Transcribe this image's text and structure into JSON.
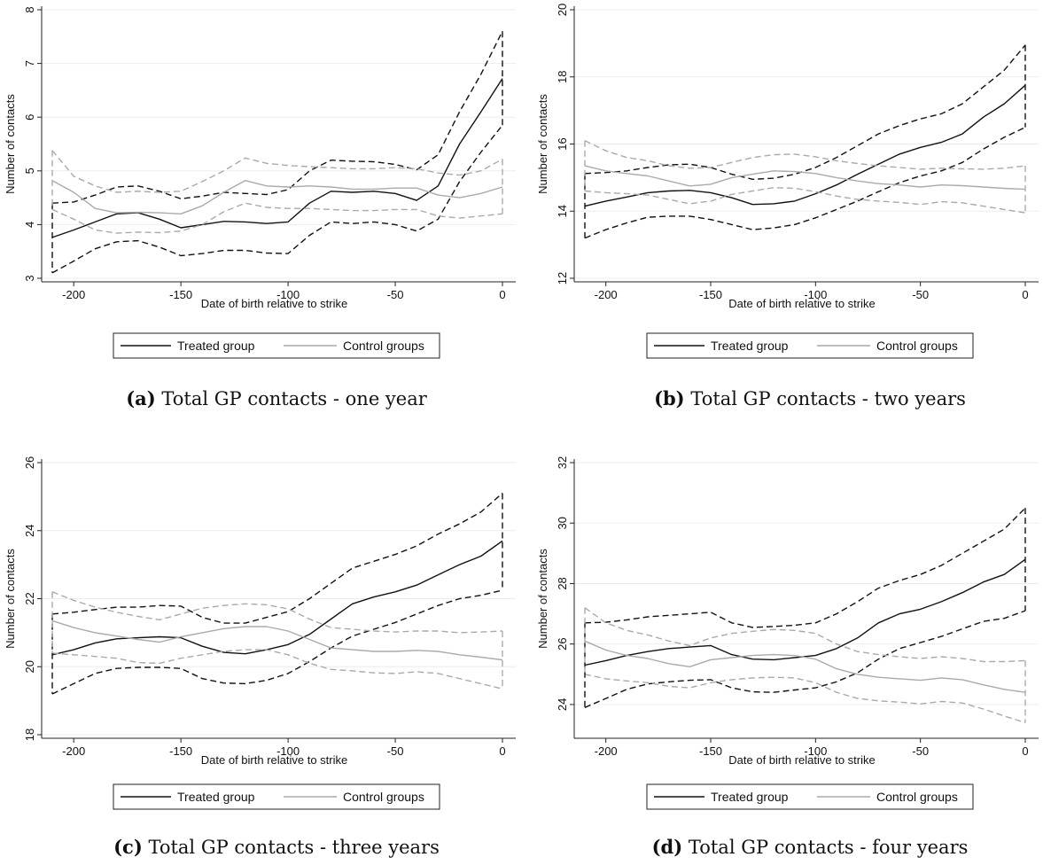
{
  "chart_data": [
    {
      "type": "line",
      "caption_letter": "(a)",
      "caption_text": "Total GP contacts - one year",
      "xlabel": "Date of birth relative to strike",
      "ylabel": "Number of contacts",
      "xlim": [
        -210,
        0
      ],
      "ylim": [
        3,
        8
      ],
      "xticks": [
        -200,
        -150,
        -100,
        -50,
        0
      ],
      "yticks": [
        3,
        4,
        5,
        6,
        7,
        8
      ],
      "grid": true,
      "legend_position": "bottom",
      "x": [
        -210,
        -200,
        -190,
        -180,
        -170,
        -160,
        -150,
        -140,
        -130,
        -120,
        -110,
        -100,
        -90,
        -80,
        -70,
        -60,
        -50,
        -40,
        -30,
        -20,
        -10,
        0
      ],
      "series": [
        {
          "name": "Treated group",
          "color": "#111111",
          "dash": "solid",
          "values": [
            3.76,
            3.9,
            4.05,
            4.2,
            4.22,
            4.1,
            3.94,
            4.0,
            4.06,
            4.05,
            4.02,
            4.05,
            4.4,
            4.62,
            4.6,
            4.62,
            4.58,
            4.45,
            4.72,
            5.5,
            6.1,
            6.72
          ]
        },
        {
          "name": "",
          "color": "#111111",
          "dash": "dashed",
          "values": [
            4.4,
            4.42,
            4.55,
            4.7,
            4.72,
            4.62,
            4.48,
            4.53,
            4.6,
            4.58,
            4.56,
            4.65,
            5.0,
            5.2,
            5.18,
            5.17,
            5.12,
            5.02,
            5.3,
            6.1,
            6.8,
            7.6
          ]
        },
        {
          "name": "",
          "color": "#111111",
          "dash": "dashed",
          "values": [
            3.1,
            3.32,
            3.55,
            3.68,
            3.7,
            3.58,
            3.42,
            3.46,
            3.52,
            3.52,
            3.47,
            3.46,
            3.8,
            4.05,
            4.02,
            4.05,
            4.0,
            3.88,
            4.1,
            4.8,
            5.35,
            5.85
          ]
        },
        {
          "name": "Control groups",
          "color": "#aaaaaa",
          "dash": "solid",
          "values": [
            4.82,
            4.6,
            4.3,
            4.22,
            4.23,
            4.22,
            4.2,
            4.35,
            4.6,
            4.82,
            4.72,
            4.7,
            4.72,
            4.7,
            4.66,
            4.66,
            4.68,
            4.68,
            4.55,
            4.5,
            4.58,
            4.7
          ]
        },
        {
          "name": "",
          "color": "#aaaaaa",
          "dash": "dashed",
          "values": [
            5.38,
            4.9,
            4.72,
            4.6,
            4.62,
            4.6,
            4.62,
            4.8,
            5.0,
            5.24,
            5.14,
            5.1,
            5.08,
            5.06,
            5.04,
            5.04,
            5.06,
            5.04,
            4.96,
            4.92,
            5.0,
            5.22
          ]
        },
        {
          "name": "",
          "color": "#aaaaaa",
          "dash": "dashed",
          "values": [
            4.28,
            4.1,
            3.9,
            3.84,
            3.86,
            3.85,
            3.88,
            4.0,
            4.24,
            4.4,
            4.32,
            4.3,
            4.3,
            4.28,
            4.26,
            4.26,
            4.28,
            4.28,
            4.16,
            4.12,
            4.16,
            4.2
          ]
        }
      ],
      "legend": [
        "Treated group",
        "Control groups"
      ]
    },
    {
      "type": "line",
      "caption_letter": "(b)",
      "caption_text": "Total GP contacts - two years",
      "xlabel": "Date of birth relative to strike",
      "ylabel": "Number of contacts",
      "xlim": [
        -210,
        0
      ],
      "ylim": [
        12,
        20
      ],
      "xticks": [
        -200,
        -150,
        -100,
        -50,
        0
      ],
      "yticks": [
        12,
        14,
        16,
        18,
        20
      ],
      "grid": true,
      "legend_position": "bottom",
      "x": [
        -210,
        -200,
        -190,
        -180,
        -170,
        -160,
        -150,
        -140,
        -130,
        -120,
        -110,
        -100,
        -90,
        -80,
        -70,
        -60,
        -50,
        -40,
        -30,
        -20,
        -10,
        0
      ],
      "series": [
        {
          "name": "Treated group",
          "color": "#111111",
          "dash": "solid",
          "values": [
            14.15,
            14.3,
            14.42,
            14.55,
            14.6,
            14.62,
            14.55,
            14.4,
            14.2,
            14.22,
            14.3,
            14.52,
            14.78,
            15.1,
            15.4,
            15.7,
            15.9,
            16.05,
            16.3,
            16.8,
            17.2,
            17.75
          ]
        },
        {
          "name": "",
          "color": "#111111",
          "dash": "dashed",
          "values": [
            15.12,
            15.15,
            15.2,
            15.3,
            15.38,
            15.4,
            15.3,
            15.1,
            14.95,
            14.98,
            15.1,
            15.3,
            15.6,
            15.95,
            16.3,
            16.55,
            16.75,
            16.9,
            17.2,
            17.7,
            18.2,
            18.95
          ]
        },
        {
          "name": "",
          "color": "#111111",
          "dash": "dashed",
          "values": [
            13.2,
            13.45,
            13.65,
            13.82,
            13.85,
            13.85,
            13.75,
            13.6,
            13.45,
            13.5,
            13.6,
            13.8,
            14.05,
            14.3,
            14.58,
            14.85,
            15.05,
            15.2,
            15.45,
            15.85,
            16.2,
            16.5
          ]
        },
        {
          "name": "Control groups",
          "color": "#aaaaaa",
          "dash": "solid",
          "values": [
            15.35,
            15.2,
            15.12,
            15.05,
            14.9,
            14.75,
            14.8,
            15.0,
            15.1,
            15.2,
            15.18,
            15.12,
            15.0,
            14.9,
            14.82,
            14.78,
            14.72,
            14.78,
            14.76,
            14.72,
            14.68,
            14.65
          ]
        },
        {
          "name": "",
          "color": "#aaaaaa",
          "dash": "dashed",
          "values": [
            16.1,
            15.8,
            15.6,
            15.5,
            15.35,
            15.28,
            15.3,
            15.45,
            15.6,
            15.68,
            15.7,
            15.62,
            15.5,
            15.42,
            15.35,
            15.3,
            15.25,
            15.28,
            15.26,
            15.25,
            15.28,
            15.35
          ]
        },
        {
          "name": "",
          "color": "#aaaaaa",
          "dash": "dashed",
          "values": [
            14.6,
            14.55,
            14.52,
            14.48,
            14.35,
            14.22,
            14.3,
            14.5,
            14.6,
            14.7,
            14.68,
            14.58,
            14.45,
            14.35,
            14.3,
            14.26,
            14.2,
            14.28,
            14.25,
            14.15,
            14.05,
            13.95
          ]
        }
      ],
      "legend": [
        "Treated group",
        "Control groups"
      ]
    },
    {
      "type": "line",
      "caption_letter": "(c)",
      "caption_text": "Total GP contacts - three years",
      "xlabel": "Date of birth relative to strike",
      "ylabel": "Number of contacts",
      "xlim": [
        -210,
        0
      ],
      "ylim": [
        18,
        26
      ],
      "xticks": [
        -200,
        -150,
        -100,
        -50,
        0
      ],
      "yticks": [
        18,
        20,
        22,
        24,
        26
      ],
      "grid": true,
      "legend_position": "bottom",
      "x": [
        -210,
        -200,
        -190,
        -180,
        -170,
        -160,
        -150,
        -140,
        -130,
        -120,
        -110,
        -100,
        -90,
        -80,
        -70,
        -60,
        -50,
        -40,
        -30,
        -20,
        -10,
        0
      ],
      "series": [
        {
          "name": "Treated group",
          "color": "#111111",
          "dash": "solid",
          "values": [
            20.35,
            20.5,
            20.7,
            20.82,
            20.85,
            20.88,
            20.85,
            20.6,
            20.42,
            20.38,
            20.5,
            20.65,
            20.95,
            21.4,
            21.85,
            22.05,
            22.2,
            22.4,
            22.7,
            23.0,
            23.25,
            23.7
          ]
        },
        {
          "name": "",
          "color": "#111111",
          "dash": "dashed",
          "values": [
            21.55,
            21.6,
            21.68,
            21.75,
            21.75,
            21.8,
            21.78,
            21.45,
            21.28,
            21.28,
            21.45,
            21.62,
            22.0,
            22.45,
            22.9,
            23.1,
            23.3,
            23.55,
            23.9,
            24.2,
            24.55,
            25.1
          ]
        },
        {
          "name": "",
          "color": "#111111",
          "dash": "dashed",
          "values": [
            19.2,
            19.5,
            19.8,
            19.95,
            19.98,
            19.98,
            19.95,
            19.65,
            19.52,
            19.5,
            19.6,
            19.8,
            20.15,
            20.55,
            20.9,
            21.1,
            21.3,
            21.55,
            21.8,
            22.0,
            22.1,
            22.25
          ]
        },
        {
          "name": "Control groups",
          "color": "#aaaaaa",
          "dash": "solid",
          "values": [
            21.35,
            21.15,
            21.0,
            20.9,
            20.8,
            20.72,
            20.88,
            21.0,
            21.12,
            21.18,
            21.18,
            21.05,
            20.8,
            20.55,
            20.5,
            20.45,
            20.45,
            20.48,
            20.45,
            20.35,
            20.28,
            20.2
          ]
        },
        {
          "name": "",
          "color": "#aaaaaa",
          "dash": "dashed",
          "values": [
            22.2,
            21.95,
            21.75,
            21.6,
            21.48,
            21.38,
            21.55,
            21.72,
            21.8,
            21.85,
            21.82,
            21.7,
            21.4,
            21.15,
            21.1,
            21.05,
            21.02,
            21.05,
            21.05,
            21.0,
            21.02,
            21.05
          ]
        },
        {
          "name": "",
          "color": "#aaaaaa",
          "dash": "dashed",
          "values": [
            20.4,
            20.35,
            20.3,
            20.25,
            20.12,
            20.1,
            20.25,
            20.35,
            20.45,
            20.5,
            20.5,
            20.35,
            20.1,
            19.92,
            19.88,
            19.82,
            19.8,
            19.85,
            19.8,
            19.65,
            19.5,
            19.35
          ]
        }
      ],
      "legend": [
        "Treated group",
        "Control groups"
      ]
    },
    {
      "type": "line",
      "caption_letter": "(d)",
      "caption_text": "Total GP contacts - four years",
      "xlabel": "Date of birth relative to strike",
      "ylabel": "Number of contacts",
      "xlim": [
        -210,
        0
      ],
      "ylim": [
        23,
        32
      ],
      "xticks": [
        -200,
        -150,
        -100,
        -50,
        0
      ],
      "yticks": [
        24,
        26,
        28,
        30,
        32
      ],
      "grid": true,
      "legend_position": "bottom",
      "x": [
        -210,
        -200,
        -190,
        -180,
        -170,
        -160,
        -150,
        -140,
        -130,
        -120,
        -110,
        -100,
        -90,
        -80,
        -70,
        -60,
        -50,
        -40,
        -30,
        -20,
        -10,
        0
      ],
      "series": [
        {
          "name": "Treated group",
          "color": "#111111",
          "dash": "solid",
          "values": [
            25.3,
            25.45,
            25.62,
            25.75,
            25.85,
            25.9,
            25.95,
            25.65,
            25.5,
            25.48,
            25.55,
            25.62,
            25.85,
            26.2,
            26.7,
            27.0,
            27.15,
            27.4,
            27.7,
            28.05,
            28.3,
            28.8
          ]
        },
        {
          "name": "",
          "color": "#111111",
          "dash": "dashed",
          "values": [
            26.7,
            26.72,
            26.8,
            26.9,
            26.95,
            27.0,
            27.05,
            26.7,
            26.55,
            26.58,
            26.62,
            26.7,
            27.0,
            27.4,
            27.85,
            28.1,
            28.3,
            28.6,
            29.0,
            29.4,
            29.8,
            30.5
          ]
        },
        {
          "name": "",
          "color": "#111111",
          "dash": "dashed",
          "values": [
            23.9,
            24.2,
            24.5,
            24.68,
            24.75,
            24.8,
            24.82,
            24.55,
            24.42,
            24.4,
            24.48,
            24.55,
            24.75,
            25.05,
            25.5,
            25.85,
            26.05,
            26.25,
            26.5,
            26.75,
            26.85,
            27.1
          ]
        },
        {
          "name": "Control groups",
          "color": "#aaaaaa",
          "dash": "solid",
          "values": [
            26.1,
            25.8,
            25.62,
            25.52,
            25.35,
            25.25,
            25.48,
            25.55,
            25.62,
            25.65,
            25.62,
            25.5,
            25.18,
            25.0,
            24.9,
            24.85,
            24.8,
            24.88,
            24.82,
            24.65,
            24.5,
            24.4
          ]
        },
        {
          "name": "",
          "color": "#aaaaaa",
          "dash": "dashed",
          "values": [
            27.2,
            26.7,
            26.45,
            26.3,
            26.1,
            25.95,
            26.2,
            26.35,
            26.42,
            26.48,
            26.45,
            26.35,
            26.0,
            25.75,
            25.65,
            25.58,
            25.52,
            25.58,
            25.52,
            25.42,
            25.42,
            25.45
          ]
        },
        {
          "name": "",
          "color": "#aaaaaa",
          "dash": "dashed",
          "values": [
            25.0,
            24.85,
            24.78,
            24.72,
            24.6,
            24.55,
            24.72,
            24.82,
            24.88,
            24.9,
            24.88,
            24.72,
            24.4,
            24.2,
            24.12,
            24.08,
            24.02,
            24.1,
            24.05,
            23.85,
            23.62,
            23.4
          ]
        }
      ],
      "legend": [
        "Treated group",
        "Control groups"
      ]
    }
  ]
}
